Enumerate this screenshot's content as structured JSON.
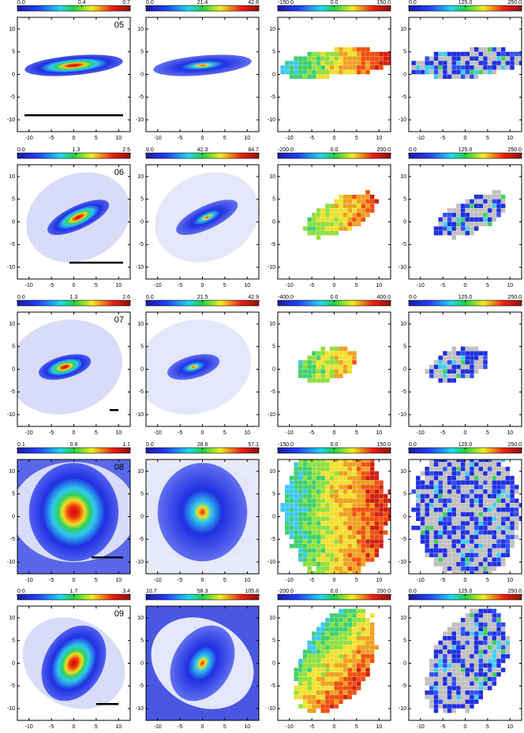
{
  "chart_data": {
    "type": "map-grid",
    "xlim": [
      -12.6,
      12.6
    ],
    "ylim": [
      -12.6,
      12.6
    ],
    "xticks": [
      -10,
      -5,
      0,
      5,
      10
    ],
    "yticks": [
      -10,
      -5,
      0,
      5,
      10
    ],
    "rows": [
      {
        "label": "05",
        "colorbars": [
          [
            {
              "value": 0,
              "label": "0.0"
            },
            0.4,
            0.7
          ],
          [
            {
              "value": 0,
              "label": "0.0"
            },
            21.4,
            42.8
          ],
          [
            {
              "value": -150,
              "label": "-150.0"
            },
            {
              "value": 0,
              "label": "0.0"
            },
            {
              "value": 150,
              "label": "150.0"
            }
          ],
          [
            {
              "value": 0,
              "label": "0.0"
            },
            {
              "value": 125,
              "label": "125.0"
            },
            {
              "value": 250,
              "label": "250.0"
            }
          ]
        ]
      },
      {
        "label": "06",
        "colorbars": [
          [
            {
              "value": 0,
              "label": "0.0"
            },
            1.3,
            2.5
          ],
          [
            {
              "value": 0,
              "label": "0.0"
            },
            42.3,
            84.7
          ],
          [
            {
              "value": -200,
              "label": "-200.0"
            },
            {
              "value": 0,
              "label": "0.0"
            },
            {
              "value": 200,
              "label": "200.0"
            }
          ],
          [
            {
              "value": 0,
              "label": "0.0"
            },
            {
              "value": 125,
              "label": "125.0"
            },
            {
              "value": 250,
              "label": "250.0"
            }
          ]
        ]
      },
      {
        "label": "07",
        "colorbars": [
          [
            {
              "value": 0,
              "label": "0.0"
            },
            1.3,
            2.6
          ],
          [
            {
              "value": 0,
              "label": "0.0"
            },
            21.5,
            42.9
          ],
          [
            {
              "value": -400,
              "label": "-400.0"
            },
            {
              "value": 0,
              "label": "0.0"
            },
            {
              "value": 400,
              "label": "400.0"
            }
          ],
          [
            {
              "value": 0,
              "label": "0.0"
            },
            {
              "value": 125,
              "label": "125.0"
            },
            {
              "value": 250,
              "label": "250.0"
            }
          ]
        ]
      },
      {
        "label": "08",
        "colorbars": [
          [
            0.1,
            0.6,
            1.1
          ],
          [
            {
              "value": 0,
              "label": "0.0"
            },
            28.6,
            57.1
          ],
          [
            {
              "value": -150,
              "label": "-150.0"
            },
            {
              "value": 0,
              "label": "0.0"
            },
            {
              "value": 150,
              "label": "150.0"
            }
          ],
          [
            {
              "value": 0,
              "label": "0.0"
            },
            {
              "value": 125,
              "label": "125.0"
            },
            {
              "value": 250,
              "label": "250.0"
            }
          ]
        ]
      },
      {
        "label": "09",
        "colorbars": [
          [
            {
              "value": 0,
              "label": "0.0"
            },
            1.7,
            3.4
          ],
          [
            10.7,
            58.3,
            105.8
          ],
          [
            {
              "value": -200,
              "label": "-200.0"
            },
            {
              "value": 0,
              "label": "0.0"
            },
            {
              "value": 200,
              "label": "200.0"
            }
          ],
          [
            {
              "value": 0,
              "label": "0.0"
            },
            {
              "value": 125,
              "label": "125.0"
            },
            {
              "value": 250,
              "label": "250.0"
            }
          ]
        ]
      }
    ]
  }
}
